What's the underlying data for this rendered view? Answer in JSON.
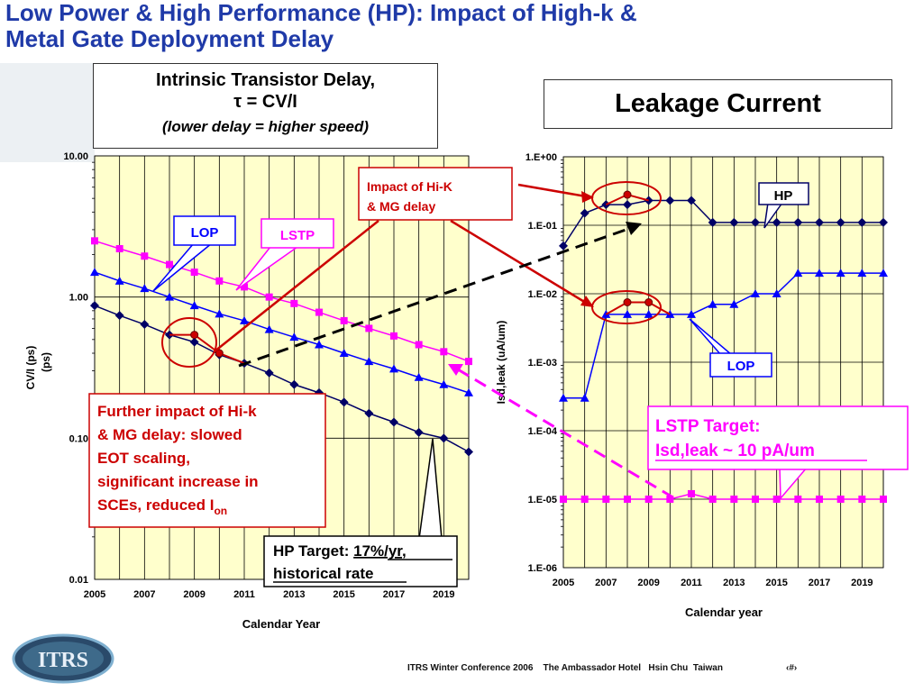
{
  "slide": {
    "title_line1": "Low Power & High Performance (HP):  Impact of High-k &",
    "title_line2": "Metal Gate Deployment Delay",
    "footer": "ITRS Winter Conference 2006    The Ambassador Hotel   Hsin Chu  Taiwan",
    "page_marker": "‹#›",
    "logo_text": "ITRS"
  },
  "left_header": {
    "line1": "Intrinsic Transistor Delay,",
    "line2": "τ = CV/I",
    "line3": "(lower delay = higher speed)"
  },
  "right_header": {
    "title": "Leakage Current"
  },
  "callouts": {
    "impact": "Impact of Hi-K & MG delay",
    "impact_l1": "Impact of Hi-K",
    "impact_l2": "& MG delay",
    "further_l1": "Further impact of Hi-k",
    "further_l2": "& MG delay:  slowed",
    "further_l3": "EOT scaling,",
    "further_l4": "significant increase in",
    "further_l5": "SCEs, reduced I",
    "further_sub": "on",
    "hp_target_l1a": "HP Target:  ",
    "hp_target_l1b": "17%/yr,",
    "hp_target_l2": "historical rate",
    "lstp_target_l1": "LSTP Target:",
    "lstp_target_l2": "Isd,leak ~ 10 pA/um",
    "lop_left": "LOP",
    "lstp_left": "LSTP",
    "hp_right": "HP",
    "lop_right": "LOP"
  },
  "colors": {
    "plot_bg": "#ffffcc",
    "hp": "#000066",
    "lop": "#0000ff",
    "lstp": "#ff00ff",
    "highlight": "#cc0000",
    "title": "#1f3aa8"
  },
  "chart_data": [
    {
      "type": "line",
      "log_scale_y": true,
      "xlabel": "Calendar Year",
      "ylabel": "CV/I (ps)",
      "ylabel2": "(ps)",
      "xlim": [
        2005,
        2020
      ],
      "ylim": [
        0.01,
        10
      ],
      "x_tick_labels": [
        "2005",
        "2007",
        "2009",
        "2011",
        "2013",
        "2015",
        "2017",
        "2019"
      ],
      "y_tick_labels": [
        "10.00",
        "1.00",
        "0.10",
        "0.01"
      ],
      "y_tick_values": [
        10,
        1,
        0.1,
        0.01
      ],
      "grid": true,
      "x": [
        2005,
        2006,
        2007,
        2008,
        2009,
        2010,
        2011,
        2012,
        2013,
        2014,
        2015,
        2016,
        2017,
        2018,
        2019,
        2020
      ],
      "series": [
        {
          "name": "HP",
          "values": [
            0.87,
            0.74,
            0.64,
            0.54,
            0.48,
            0.39,
            0.34,
            0.29,
            0.24,
            0.21,
            0.18,
            0.15,
            0.13,
            0.11,
            0.1,
            0.08
          ]
        },
        {
          "name": "LOP",
          "values": [
            1.5,
            1.3,
            1.15,
            1.0,
            0.87,
            0.76,
            0.68,
            0.59,
            0.52,
            0.46,
            0.4,
            0.35,
            0.31,
            0.27,
            0.24,
            0.21
          ]
        },
        {
          "name": "LSTP",
          "values": [
            2.5,
            2.2,
            1.95,
            1.7,
            1.5,
            1.3,
            1.18,
            1.0,
            0.9,
            0.78,
            0.68,
            0.6,
            0.53,
            0.46,
            0.41,
            0.35
          ]
        }
      ],
      "delayed_hp": {
        "x": [
          2009,
          2010
        ],
        "values": [
          0.54,
          0.4
        ]
      }
    },
    {
      "type": "line",
      "log_scale_y": true,
      "xlabel": "Calendar year",
      "ylabel": "Isd,leak (uA/um)",
      "xlim": [
        2005,
        2020
      ],
      "ylim": [
        1e-06,
        1
      ],
      "x_tick_labels": [
        "2005",
        "2007",
        "2009",
        "2011",
        "2013",
        "2015",
        "2017",
        "2019"
      ],
      "y_tick_labels": [
        "1.E+00",
        "1.E-01",
        "1.E-02",
        "1.E-03",
        "1.E-04",
        "1.E-05",
        "1.E-06"
      ],
      "y_tick_values": [
        1,
        0.1,
        0.01,
        0.001,
        0.0001,
        1e-05,
        1e-06
      ],
      "grid": true,
      "x": [
        2005,
        2006,
        2007,
        2008,
        2009,
        2010,
        2011,
        2012,
        2013,
        2014,
        2015,
        2016,
        2017,
        2018,
        2019,
        2020
      ],
      "series": [
        {
          "name": "HP",
          "values": [
            0.05,
            0.15,
            0.2,
            0.2,
            0.23,
            0.23,
            0.23,
            0.11,
            0.11,
            0.11,
            0.11,
            0.11,
            0.11,
            0.11,
            0.11,
            0.11
          ]
        },
        {
          "name": "LOP",
          "values": [
            0.0003,
            0.0003,
            0.005,
            0.005,
            0.005,
            0.005,
            0.005,
            0.007,
            0.007,
            0.01,
            0.01,
            0.02,
            0.02,
            0.02,
            0.02,
            0.02
          ]
        },
        {
          "name": "LSTP",
          "values": [
            1e-05,
            1e-05,
            1e-05,
            1e-05,
            1e-05,
            1e-05,
            1.2e-05,
            1e-05,
            1e-05,
            1e-05,
            1e-05,
            1e-05,
            1e-05,
            1e-05,
            1e-05,
            1e-05
          ]
        }
      ],
      "delayed_hp": {
        "x": [
          2008
        ],
        "values": [
          0.28
        ]
      },
      "delayed_lop": {
        "x": [
          2008,
          2009
        ],
        "values": [
          0.0075,
          0.0075
        ]
      }
    }
  ]
}
